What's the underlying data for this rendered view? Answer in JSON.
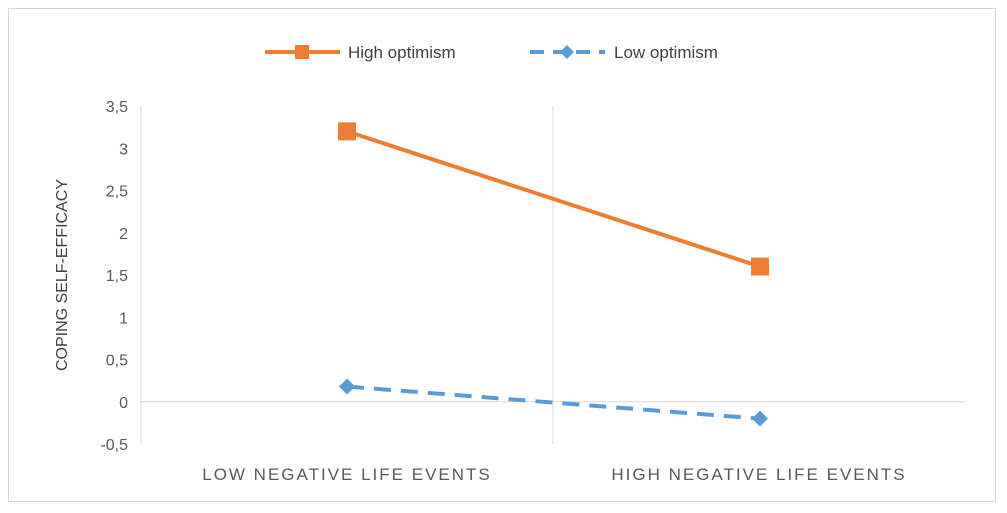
{
  "chart_data": {
    "type": "line",
    "categories": [
      "LOW NEGATIVE LIFE EVENTS",
      "HIGH NEGATIVE LIFE EVENTS"
    ],
    "series": [
      {
        "name": "High optimism",
        "values": [
          3.2,
          1.6
        ],
        "color": "#ED7D31",
        "marker": "square",
        "line": "solid"
      },
      {
        "name": "Low optimism",
        "values": [
          0.18,
          -0.2
        ],
        "color": "#5B9BD5",
        "marker": "diamond",
        "line": "dashed"
      }
    ],
    "ylabel": "COPING SELF-EFFICACY",
    "ylim": [
      -0.5,
      3.5
    ],
    "yticks": [
      "-0,5",
      "0",
      "0,5",
      "1",
      "1,5",
      "2",
      "2,5",
      "3",
      "3,5"
    ],
    "legend_position": "top",
    "grid": false
  }
}
